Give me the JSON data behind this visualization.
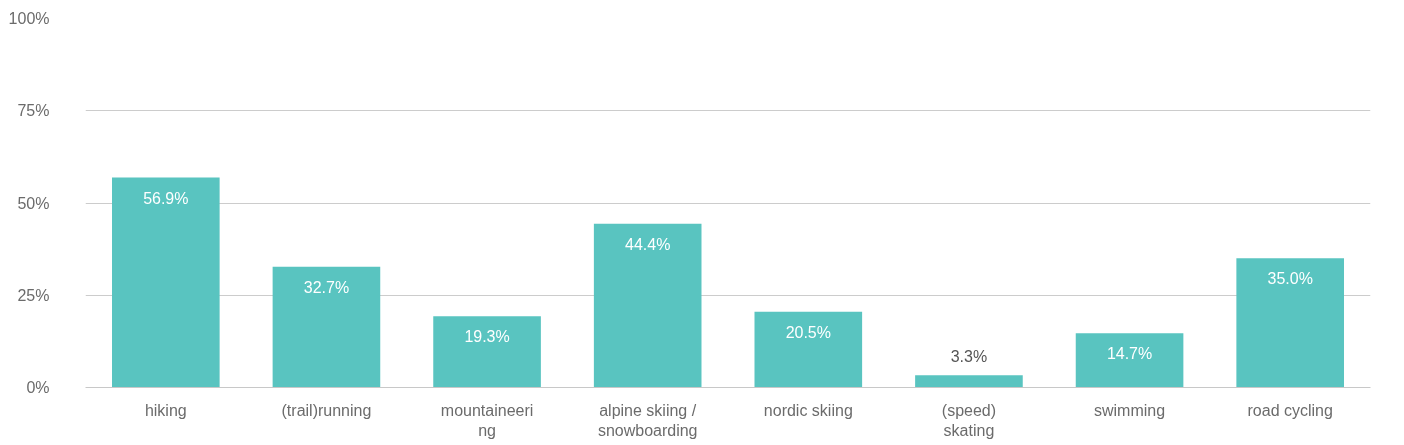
{
  "chart_data": {
    "type": "bar",
    "categories": [
      "hiking",
      "(trail)running",
      "mountaineering",
      "alpine skiing / snowboarding",
      "nordic skiing",
      "(speed) skating",
      "swimming",
      "road cycling"
    ],
    "values": [
      56.9,
      32.7,
      19.3,
      44.4,
      20.5,
      3.3,
      14.7,
      35.0
    ],
    "value_labels": [
      "56.9%",
      "32.7%",
      "19.3%",
      "44.4%",
      "20.5%",
      "3.3%",
      "14.7%",
      "35.0%"
    ],
    "color": "#59c4c0",
    "ylim": [
      0,
      100
    ],
    "yticks": [
      {
        "value": 0,
        "label": "0%"
      },
      {
        "value": 25,
        "label": "25%"
      },
      {
        "value": 50,
        "label": "50%"
      },
      {
        "value": 75,
        "label": "75%"
      },
      {
        "value": 100,
        "label": "100%"
      }
    ],
    "grid": "y"
  }
}
